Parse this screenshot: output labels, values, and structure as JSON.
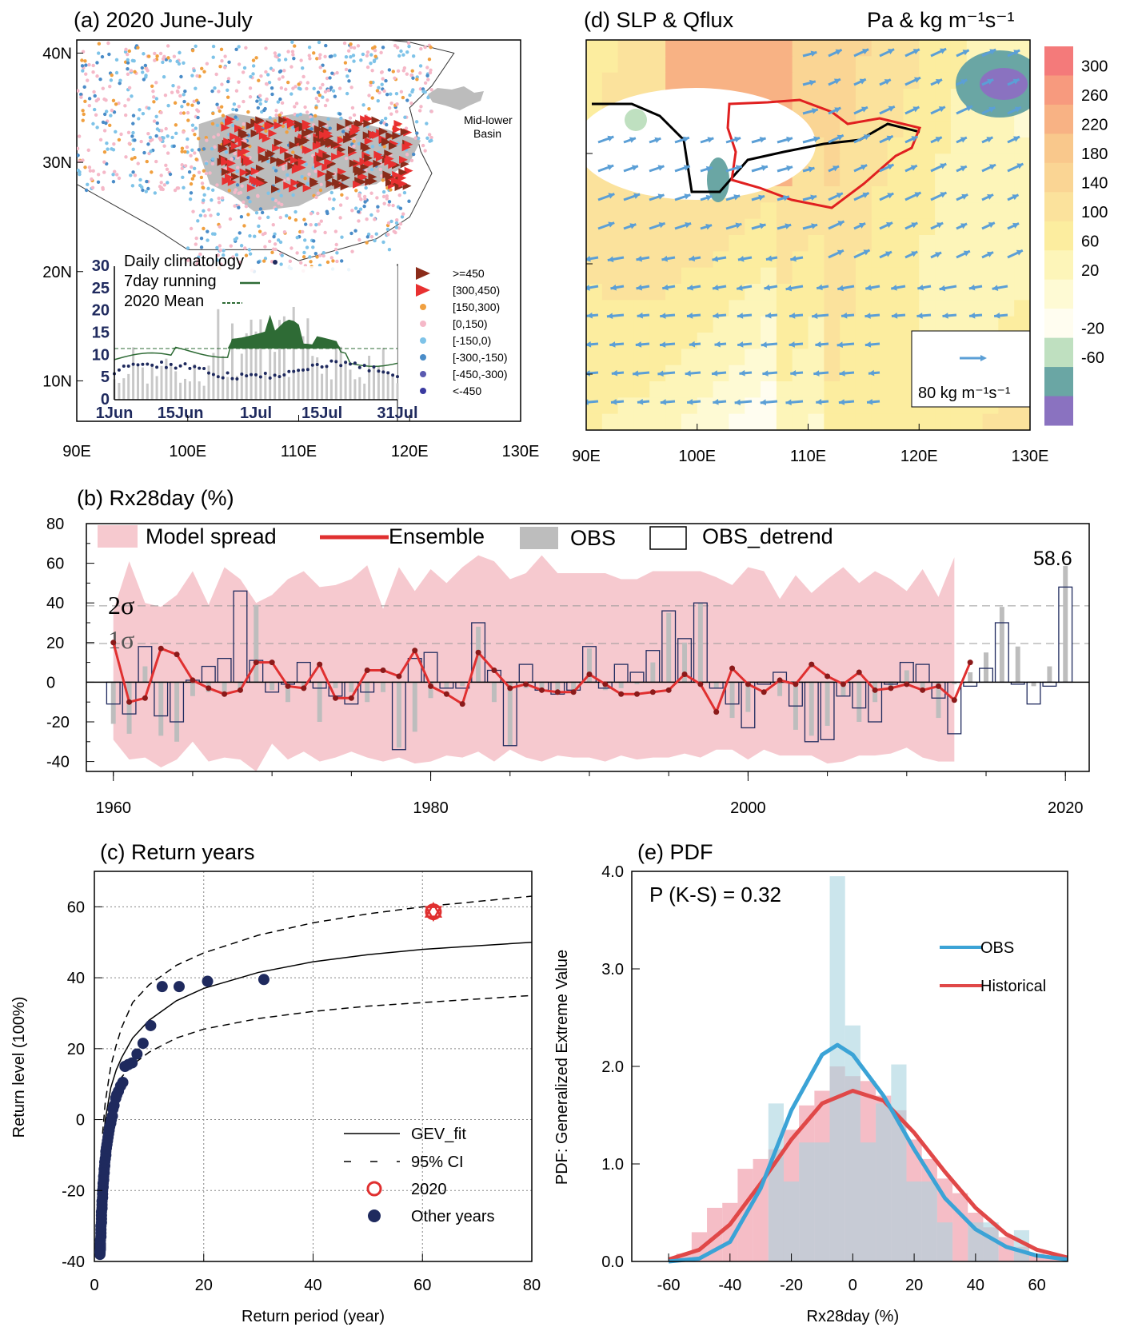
{
  "colors": {
    "navy": "#1f2a5e",
    "red": "#e03030",
    "darkred": "#8b1a1a",
    "pink": "#f6c9cf",
    "obs_gray": "#bdbdbd",
    "china_gray": "#bcbcbc",
    "dark_green": "#2e6b35",
    "obs_blue": "#3ba3d6",
    "hist_red": "#e04848",
    "hist_fill": "#f2a7b3",
    "obs_fill": "#a8d3e0",
    "arrow_blue": "#5b9fd6"
  },
  "panel_a": {
    "title": "(a) 2020 June-July",
    "lat_labels": [
      "40N",
      "30N",
      "20N",
      "10N"
    ],
    "lon_labels": [
      "90E",
      "100E",
      "110E",
      "120E",
      "130E"
    ],
    "region_label": [
      "Mid-lower",
      "Basin"
    ],
    "station_legend": [
      {
        "label": ">=450",
        "symbol": "triangle",
        "color": "#8b2c1a"
      },
      {
        "label": "[300,450)",
        "symbol": "triangle",
        "color": "#e83030"
      },
      {
        "label": "[150,300)",
        "symbol": "dot",
        "color": "#f0a040"
      },
      {
        "label": "[0,150)",
        "symbol": "dot",
        "color": "#f5b8c8"
      },
      {
        "label": "[-150,0)",
        "symbol": "dot",
        "color": "#7ec3e8"
      },
      {
        "label": "[-300,-150)",
        "symbol": "dot",
        "color": "#4a8cc8"
      },
      {
        "label": "[-450,-300)",
        "symbol": "dot",
        "color": "#5a5ab0"
      },
      {
        "label": "<-450",
        "symbol": "dot",
        "color": "#3a3aa0"
      }
    ],
    "inset": {
      "legend": [
        "Daily climatology",
        "7day running",
        "2020 Mean"
      ],
      "y_ticks": [
        "30",
        "25",
        "20",
        "15",
        "10",
        "5",
        "0"
      ],
      "x_ticks": [
        "1Jun",
        "15Jun",
        "1Jul",
        "15Jul",
        "31Jul"
      ],
      "mean_2020": 11.5,
      "climatology_min": 4.5,
      "climatology_max": 8.5,
      "running_peak": 16.5,
      "ylim": [
        0,
        30
      ]
    }
  },
  "panel_d": {
    "title": "(d) SLP & Qflux",
    "units": "Pa & kg m⁻¹s⁻¹",
    "lon_labels": [
      "90E",
      "100E",
      "110E",
      "120E",
      "130E"
    ],
    "colorbar_labels": [
      "300",
      "260",
      "220",
      "180",
      "140",
      "100",
      "60",
      "20",
      "-20",
      "-60"
    ],
    "colorbar_colors": [
      "#f47a7a",
      "#f79a7e",
      "#f8b284",
      "#f9c88c",
      "#fad594",
      "#fbe29c",
      "#fced9f",
      "#fdf5b9",
      "#fefad4",
      "#fffdf0",
      "#bfe0c0",
      "#6aa6a4",
      "#8a72c0"
    ],
    "reference_vector": "80 kg m⁻¹s⁻¹"
  },
  "panel_b": {
    "title": "(b) Rx28day (%)",
    "legend": [
      "Model spread",
      "Ensemble",
      "OBS",
      "OBS_detrend"
    ],
    "annotation": "58.6",
    "sigma_labels": [
      "2σ",
      "1σ"
    ],
    "sigma_levels": [
      38.5,
      19.5
    ],
    "y_ticks": [
      "80",
      "60",
      "40",
      "20",
      "0",
      "-20",
      "-40"
    ],
    "x_ticks": [
      "1960",
      "1980",
      "2000",
      "2020"
    ]
  },
  "panel_c": {
    "title": "(c) Return years",
    "xlabel": "Return period (year)",
    "ylabel": "Return level (100%)",
    "x_ticks": [
      "0",
      "20",
      "40",
      "60",
      "80"
    ],
    "y_ticks": [
      "60",
      "40",
      "20",
      "0",
      "-20",
      "-40"
    ],
    "legend": [
      "GEV_fit",
      "95% CI",
      "2020",
      "Other years"
    ]
  },
  "panel_e": {
    "title": "(e) PDF",
    "annotation": "P (K-S) = 0.32",
    "xlabel": "Rx28day (%)",
    "ylabel": "PDF: Generalized Extreme Value",
    "x_ticks": [
      "-60",
      "-40",
      "-20",
      "0",
      "20",
      "40",
      "60"
    ],
    "y_ticks": [
      "4.0",
      "3.0",
      "2.0",
      "1.0",
      "0.0"
    ],
    "legend": [
      "OBS",
      "Historical"
    ]
  },
  "chart_data": [
    {
      "type": "bar",
      "panel": "b",
      "title": "(b) Rx28day (%)",
      "ylim": [
        -45,
        80
      ],
      "years": [
        1960,
        1961,
        1962,
        1963,
        1964,
        1965,
        1966,
        1967,
        1968,
        1969,
        1970,
        1971,
        1972,
        1973,
        1974,
        1975,
        1976,
        1977,
        1978,
        1979,
        1980,
        1981,
        1982,
        1983,
        1984,
        1985,
        1986,
        1987,
        1988,
        1989,
        1990,
        1991,
        1992,
        1993,
        1994,
        1995,
        1996,
        1997,
        1998,
        1999,
        2000,
        2001,
        2002,
        2003,
        2004,
        2005,
        2006,
        2007,
        2008,
        2009,
        2010,
        2011,
        2012,
        2013,
        2014,
        2015,
        2016,
        2017,
        2018,
        2019,
        2020
      ],
      "series": [
        {
          "name": "OBS",
          "values": [
            -21,
            -26,
            8,
            -27,
            -30,
            -7,
            -5,
            -5,
            -5,
            39,
            -4,
            -10,
            -2,
            -20,
            -3,
            -5,
            -10,
            -5,
            -33,
            -25,
            -8,
            -3,
            -2,
            28,
            -10,
            -32,
            -3,
            -5,
            -5,
            -5,
            17,
            -4,
            -3,
            -1,
            10,
            35,
            20,
            40,
            -3,
            -18,
            -15,
            0,
            -7,
            -24,
            -27,
            -22,
            -7,
            -20,
            -10,
            -3,
            6,
            -3,
            -18,
            -1,
            5,
            15,
            38,
            18,
            -2,
            8,
            58.6
          ]
        },
        {
          "name": "OBS_detrend",
          "values": [
            -11,
            -16,
            18,
            -17,
            -20,
            1,
            8,
            12,
            46,
            11,
            -5,
            -1,
            10,
            -3,
            -7,
            -11,
            -5,
            0,
            -34,
            12,
            15,
            -3,
            -3,
            30,
            6,
            -32,
            9,
            -4,
            -6,
            -4,
            18,
            -3,
            9,
            5,
            16,
            36,
            22,
            40,
            -3,
            -11,
            -23,
            -1,
            5,
            -12,
            -30,
            -29,
            -7,
            -13,
            -20,
            -1,
            10,
            9,
            -8,
            -26,
            -2,
            7,
            30,
            -1,
            -11,
            -2,
            48
          ]
        },
        {
          "name": "Ensemble",
          "values": [
            20,
            -10,
            -8,
            17,
            14,
            1,
            -3,
            -6,
            -4,
            10,
            10,
            -2,
            -3,
            9,
            -8,
            -8,
            6,
            6,
            3,
            16,
            -2,
            -6,
            -11,
            15,
            6,
            -3,
            -1,
            -4,
            -5,
            -5,
            4,
            -1,
            -6,
            -6,
            -5,
            -4,
            4,
            -1,
            -15,
            7,
            -1,
            -5,
            1,
            -1,
            9,
            3,
            -1,
            5,
            -4,
            -3,
            -1,
            -4,
            -2,
            -9,
            10
          ]
        },
        {
          "name": "Model spread upper",
          "values": [
            36,
            61,
            40,
            38,
            44,
            56,
            39,
            58,
            52,
            40,
            44,
            52,
            56,
            48,
            49,
            52,
            59,
            37,
            58,
            46,
            57,
            50,
            58,
            64,
            61,
            52,
            55,
            64,
            55,
            55,
            55,
            55,
            52,
            52,
            56,
            56,
            56,
            56,
            53,
            49,
            58,
            56,
            42,
            54,
            45,
            52,
            58,
            50,
            56,
            52,
            46,
            57,
            43,
            63
          ]
        },
        {
          "name": "Model spread lower",
          "values": [
            -29,
            -39,
            -38,
            -43,
            -39,
            -30,
            -40,
            -38,
            -39,
            -45,
            -31,
            -39,
            -35,
            -40,
            -38,
            -35,
            -38,
            -40,
            -38,
            -41,
            -40,
            -37,
            -38,
            -35,
            -40,
            -34,
            -38,
            -40,
            -37,
            -38,
            -38,
            -40,
            -37,
            -39,
            -38,
            -38,
            -36,
            -38,
            -34,
            -34,
            -39,
            -34,
            -37,
            -37,
            -37,
            -41,
            -40,
            -37,
            -37,
            -36,
            -33,
            -38,
            -40,
            -40
          ]
        }
      ]
    },
    {
      "type": "scatter",
      "panel": "c",
      "title": "(c) Return years",
      "xlabel": "Return period (year)",
      "ylabel": "Return level (100%)",
      "xlim": [
        0,
        80
      ],
      "ylim": [
        -40,
        70
      ],
      "series": [
        {
          "name": "2020",
          "x": [
            62
          ],
          "y": [
            58.6
          ]
        },
        {
          "name": "Other years",
          "x": [
            31,
            20.7,
            15.5,
            12.4,
            10.3,
            8.9,
            7.8,
            6.9,
            6.2,
            5.6,
            5.2,
            4.8,
            4.4,
            4.1,
            3.9,
            3.6,
            3.4,
            3.3,
            3.1,
            3,
            2.8,
            2.7,
            2.6,
            2.5,
            2.4,
            2.3,
            2.2,
            2.1,
            2.1,
            2,
            1.9,
            1.9,
            1.8,
            1.8,
            1.7,
            1.7,
            1.6,
            1.6,
            1.5,
            1.5,
            1.5,
            1.4,
            1.4,
            1.4,
            1.3,
            1.3,
            1.3,
            1.3,
            1.2,
            1.2,
            1.2,
            1.2,
            1.1,
            1.1,
            1.1,
            1.1,
            1.1,
            1.05,
            1.04,
            1.02
          ],
          "y": [
            39.5,
            39,
            37.5,
            37.5,
            26.5,
            21.5,
            18.5,
            16,
            15.5,
            15,
            10.5,
            9.5,
            8,
            7,
            6,
            4,
            3,
            1,
            0,
            -1,
            -2,
            -3,
            -4,
            -5,
            -6,
            -7,
            -8,
            -9,
            -10,
            -11,
            -12,
            -13,
            -14,
            -15,
            -16,
            -17,
            -18,
            -19,
            -20,
            -21,
            -22,
            -23,
            -24,
            -25,
            -26,
            -27,
            -28,
            -29,
            -30,
            -31,
            -32,
            -33,
            -34,
            -35,
            -35.5,
            -36,
            -36.5,
            -37,
            -37.5,
            -38
          ]
        },
        {
          "name": "GEV_fit",
          "x": [
            1.05,
            1.2,
            1.5,
            2,
            3,
            4,
            5,
            7,
            10,
            15,
            20,
            30,
            40,
            50,
            60,
            70,
            80
          ],
          "y": [
            -34,
            -22,
            -9,
            0,
            9,
            14,
            17.5,
            23,
            28,
            33.5,
            37,
            41.5,
            44.5,
            46.5,
            48,
            49,
            50
          ]
        },
        {
          "name": "95% CI upper",
          "x": [
            1.5,
            2,
            3,
            4,
            5,
            7,
            10,
            15,
            20,
            30,
            40,
            50,
            60,
            70,
            80
          ],
          "y": [
            -4,
            5,
            15,
            21,
            26,
            33,
            38,
            43.5,
            47,
            52,
            55.5,
            58,
            60,
            61.5,
            63
          ]
        },
        {
          "name": "95% CI lower",
          "x": [
            1.5,
            2,
            3,
            4,
            5,
            7,
            10,
            15,
            20,
            30,
            40,
            50,
            60,
            70,
            80
          ],
          "y": [
            -12,
            -4,
            4,
            9,
            12,
            15.5,
            19,
            23,
            25.5,
            28.5,
            30.5,
            32,
            33,
            34,
            35
          ]
        }
      ]
    },
    {
      "type": "line",
      "panel": "e",
      "title": "(e) PDF",
      "xlabel": "Rx28day (%)",
      "ylabel": "PDF: Generalized Extreme Value",
      "xlim": [
        -72,
        70
      ],
      "ylim": [
        0,
        4
      ],
      "series": [
        {
          "name": "OBS",
          "x": [
            -60,
            -50,
            -40,
            -30,
            -20,
            -10,
            -5,
            0,
            10,
            20,
            30,
            40,
            50,
            60,
            70
          ],
          "y": [
            0,
            0.03,
            0.2,
            0.75,
            1.55,
            2.12,
            2.22,
            2.12,
            1.7,
            1.15,
            0.65,
            0.33,
            0.15,
            0.06,
            0.02
          ]
        },
        {
          "name": "Historical",
          "x": [
            -60,
            -50,
            -40,
            -30,
            -20,
            -10,
            0,
            10,
            20,
            30,
            40,
            50,
            60,
            70
          ],
          "y": [
            0.02,
            0.12,
            0.38,
            0.8,
            1.25,
            1.62,
            1.75,
            1.65,
            1.32,
            0.92,
            0.55,
            0.28,
            0.12,
            0.04
          ]
        },
        {
          "name": "OBS histogram",
          "x": [
            -25,
            -20,
            -15,
            -10,
            -5,
            0,
            5,
            10,
            15,
            20,
            25,
            30,
            35,
            40,
            45,
            50,
            55
          ],
          "y": [
            1.62,
            0.82,
            1.22,
            1.22,
            3.95,
            2.42,
            1.22,
            1.62,
            2.02,
            0.82,
            0.82,
            0.4,
            0,
            0.4,
            0.4,
            0,
            0.32
          ]
        },
        {
          "name": "Historical histogram",
          "x": [
            -55,
            -50,
            -45,
            -40,
            -35,
            -30,
            -25,
            -20,
            -15,
            -10,
            -5,
            0,
            5,
            10,
            15,
            20,
            25,
            30,
            35,
            40,
            45,
            50,
            55,
            60,
            65
          ],
          "y": [
            0.08,
            0.3,
            0.55,
            0.6,
            0.95,
            1.05,
            1.15,
            1.35,
            1.6,
            1.75,
            2.0,
            1.9,
            1.85,
            1.7,
            1.55,
            1.25,
            1.05,
            0.85,
            0.7,
            0.5,
            0.35,
            0.25,
            0.15,
            0.08,
            0.04
          ]
        }
      ]
    }
  ]
}
